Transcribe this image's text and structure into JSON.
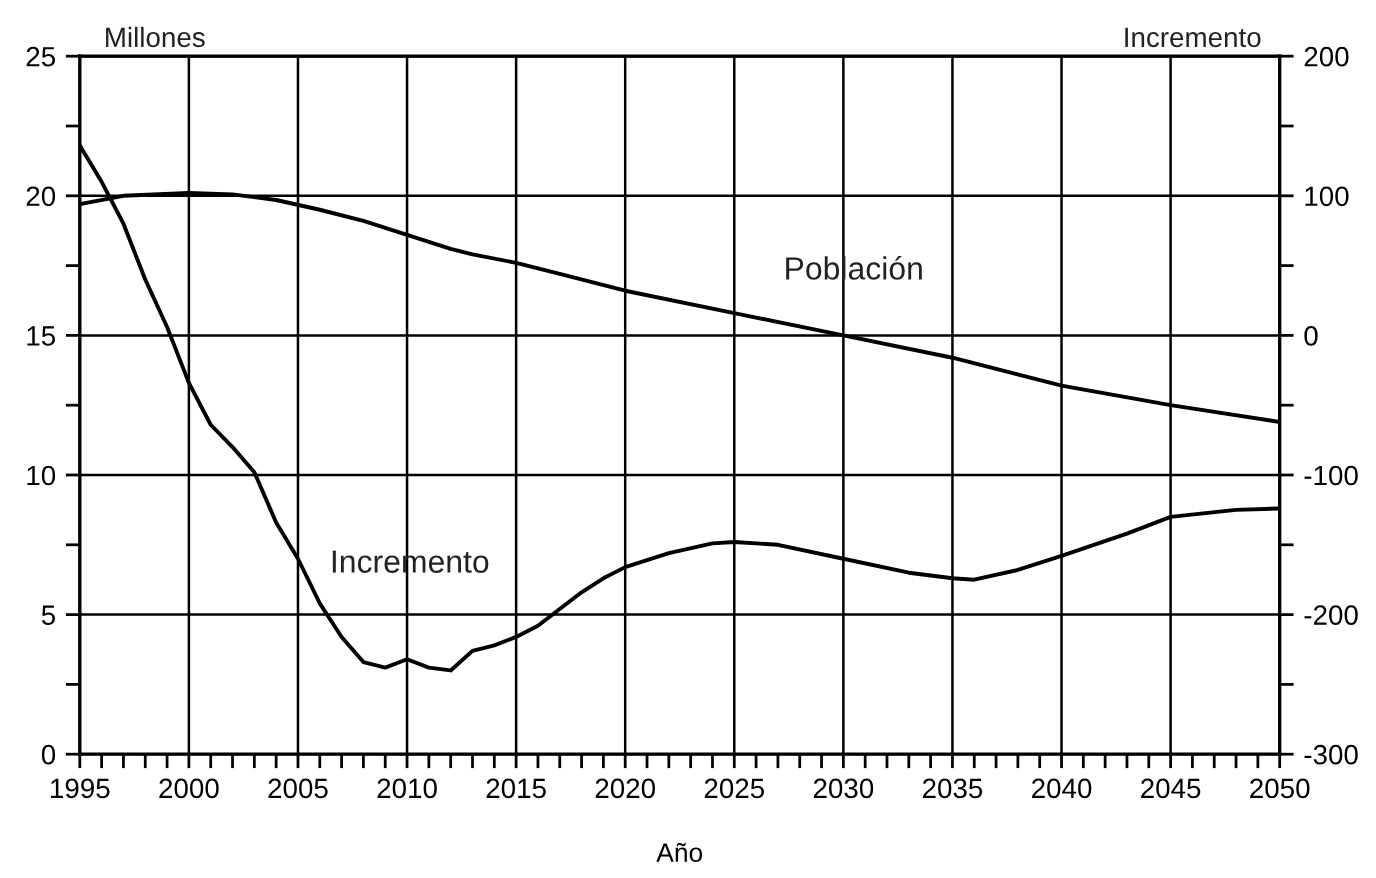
{
  "chart_data": {
    "type": "line",
    "xlabel": "Año",
    "ylabel": "Millones",
    "y2label": "Incremento",
    "series": [
      {
        "color": "#000000",
        "x": [
          1995,
          1997,
          2000,
          2002,
          2004,
          2006,
          2008,
          2010,
          2012,
          2013,
          2015,
          2017,
          2020,
          2025,
          2030,
          2035,
          2040,
          2045,
          2050
        ],
        "values": [
          19.7,
          20.0,
          20.1,
          20.05,
          19.85,
          19.5,
          19.1,
          18.6,
          18.1,
          17.9,
          17.6,
          17.2,
          16.6,
          15.8,
          15.0,
          14.2,
          13.2,
          12.5,
          11.9
        ]
      },
      {
        "color": "#000000",
        "axis": "y2",
        "x": [
          1995,
          1996,
          1997,
          1998,
          1999,
          2000,
          2001,
          2002,
          2003,
          2004,
          2005,
          2006,
          2007,
          2008,
          2009,
          2010,
          2011,
          2012,
          2013,
          2014,
          2015,
          2016,
          2017,
          2018,
          2019,
          2020,
          2022,
          2024,
          2025,
          2027,
          2030,
          2033,
          2035,
          2036,
          2038,
          2040,
          2043,
          2045,
          2048,
          2050
        ],
        "values": [
          136,
          110,
          80,
          40,
          6,
          -34,
          -64,
          -80,
          -98,
          -134,
          -160,
          -192,
          -216,
          -234,
          -238,
          -232,
          -238,
          -240,
          -226,
          -222,
          -216,
          -208,
          -196,
          -184,
          -174,
          -166,
          -156,
          -149,
          -148,
          -150,
          -160,
          -170,
          -174,
          -175,
          -168,
          -158,
          -142,
          -130,
          -125,
          -124
        ]
      }
    ],
    "annotations": [
      "Población",
      "Incremento"
    ],
    "xlim": [
      1995,
      2050
    ],
    "xticks": [
      1995,
      {
        "value": 1996,
        "label": null
      },
      {
        "value": 1997,
        "label": null
      },
      {
        "value": 1998,
        "label": null
      },
      {
        "value": 1999,
        "label": null
      },
      2000,
      {
        "value": 2001,
        "label": null
      },
      {
        "value": 2002,
        "label": null
      },
      {
        "value": 2003,
        "label": null
      },
      {
        "value": 2004,
        "label": null
      },
      2005,
      {
        "value": 2006,
        "label": null
      },
      {
        "value": 2007,
        "label": null
      },
      {
        "value": 2008,
        "label": null
      },
      {
        "value": 2009,
        "label": null
      },
      2010,
      {
        "value": 2011,
        "label": null
      },
      {
        "value": 2012,
        "label": null
      },
      {
        "value": 2013,
        "label": null
      },
      {
        "value": 2014,
        "label": null
      },
      2015,
      {
        "value": 2016,
        "label": null
      },
      {
        "value": 2017,
        "label": null
      },
      {
        "value": 2018,
        "label": null
      },
      {
        "value": 2019,
        "label": null
      },
      2020,
      {
        "value": 2021,
        "label": null
      },
      {
        "value": 2022,
        "label": null
      },
      {
        "value": 2023,
        "label": null
      },
      {
        "value": 2024,
        "label": null
      },
      2025,
      {
        "value": 2026,
        "label": null
      },
      {
        "value": 2027,
        "label": null
      },
      {
        "value": 2028,
        "label": null
      },
      {
        "value": 2029,
        "label": null
      },
      2030,
      {
        "value": 2031,
        "label": null
      },
      {
        "value": 2032,
        "label": null
      },
      {
        "value": 2033,
        "label": null
      },
      {
        "value": 2034,
        "label": null
      },
      2035,
      {
        "value": 2036,
        "label": null
      },
      {
        "value": 2037,
        "label": null
      },
      {
        "value": 2038,
        "label": null
      },
      {
        "value": 2039,
        "label": null
      },
      2040,
      {
        "value": 2041,
        "label": null
      },
      {
        "value": 2042,
        "label": null
      },
      {
        "value": 2043,
        "label": null
      },
      {
        "value": 2044,
        "label": null
      },
      2045,
      {
        "value": 2046,
        "label": null
      },
      {
        "value": 2047,
        "label": null
      },
      {
        "value": 2048,
        "label": null
      },
      {
        "value": 2049,
        "label": null
      },
      2050
    ],
    "ylim": [
      0,
      25
    ],
    "yticks": [
      0,
      {
        "value": 2.5,
        "label": null
      },
      5,
      {
        "value": 7.5,
        "label": null
      },
      10,
      {
        "value": 12.5,
        "label": null
      },
      15,
      {
        "value": 17.5,
        "label": null
      },
      20,
      {
        "value": 22.5,
        "label": null
      },
      25
    ],
    "y2lim": [
      -300,
      200
    ],
    "y2ticks": [
      {
        "value": -300,
        "label": "-300"
      },
      {
        "value": -250,
        "label": null
      },
      {
        "value": -200,
        "label": "-200"
      },
      {
        "value": -150,
        "label": null
      },
      {
        "value": -100,
        "label": "-100"
      },
      {
        "value": -50,
        "label": null
      },
      0,
      {
        "value": 50,
        "label": null
      },
      100,
      {
        "value": 150,
        "label": null
      },
      200
    ],
    "grid": true,
    "legend": false,
    "marker": "none",
    "line_style": "solid"
  }
}
